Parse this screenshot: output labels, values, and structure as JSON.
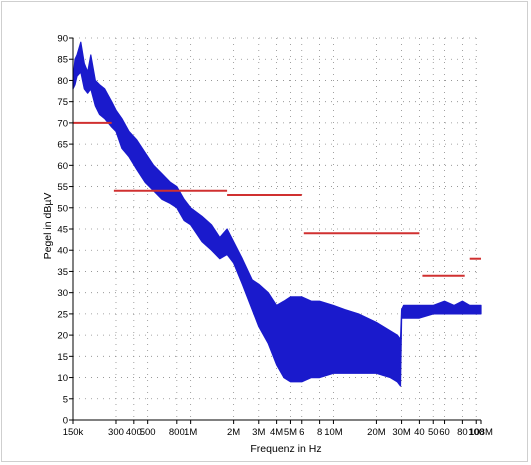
{
  "chart_data": {
    "type": "line",
    "title": "",
    "xlabel": "Frequenz in Hz",
    "ylabel": "Pegel in dBµV",
    "x_scale": "log",
    "xlim": [
      150000,
      108000000
    ],
    "ylim": [
      0,
      90
    ],
    "y_ticks": [
      0,
      5,
      10,
      15,
      20,
      25,
      30,
      35,
      40,
      45,
      50,
      55,
      60,
      65,
      70,
      75,
      80,
      85,
      90
    ],
    "x_tick_labels": [
      {
        "x": 150000,
        "label": "150k"
      },
      {
        "x": 300000,
        "label": "300"
      },
      {
        "x": 400000,
        "label": "400"
      },
      {
        "x": 500000,
        "label": "500"
      },
      {
        "x": 800000,
        "label": "800"
      },
      {
        "x": 1000000,
        "label": "1M"
      },
      {
        "x": 2000000,
        "label": "2M"
      },
      {
        "x": 3000000,
        "label": "3M"
      },
      {
        "x": 4000000,
        "label": "4M"
      },
      {
        "x": 5000000,
        "label": "5M"
      },
      {
        "x": 6000000,
        "label": "6"
      },
      {
        "x": 8000000,
        "label": "8"
      },
      {
        "x": 10000000,
        "label": "10M"
      },
      {
        "x": 20000000,
        "label": "20M"
      },
      {
        "x": 30000000,
        "label": "30M"
      },
      {
        "x": 40000000,
        "label": "40"
      },
      {
        "x": 50000000,
        "label": "50"
      },
      {
        "x": 60000000,
        "label": "60"
      },
      {
        "x": 80000000,
        "label": "80"
      },
      {
        "x": 100000000,
        "label": "100"
      },
      {
        "x": 108000000,
        "label": "108M"
      }
    ],
    "grid": true,
    "grid_style": "dotted",
    "series": [
      {
        "color": "#1a1acc",
        "style": "band",
        "x": [
          150000,
          155000,
          160000,
          170000,
          180000,
          190000,
          200000,
          215000,
          230000,
          250000,
          280000,
          300000,
          330000,
          370000,
          420000,
          480000,
          550000,
          630000,
          720000,
          800000,
          900000,
          1000000,
          1200000,
          1400000,
          1600000,
          1800000,
          2000000,
          2300000,
          2700000,
          3000000,
          3500000,
          4000000,
          4500000,
          5000000,
          5500000,
          6000000,
          7000000,
          8000000,
          10000000,
          12000000,
          15000000,
          20000000,
          25000000,
          28000000,
          29500000,
          30000000,
          31000000,
          35000000,
          40000000,
          50000000,
          60000000,
          70000000,
          80000000,
          90000000,
          100000000,
          108000000
        ],
        "high": [
          80,
          85,
          86,
          89,
          84,
          82,
          86,
          80,
          79,
          78,
          75,
          73,
          71,
          68,
          66,
          63,
          60,
          58,
          56,
          55,
          52,
          50,
          48,
          46,
          43,
          45,
          42,
          38,
          33,
          32,
          30,
          27,
          28,
          29,
          29,
          29,
          28,
          28,
          27,
          26,
          25,
          23,
          21,
          20,
          19,
          26,
          27,
          27,
          27,
          27,
          28,
          27,
          28,
          27,
          27,
          27
        ],
        "low": [
          78,
          79,
          81,
          82,
          78,
          77,
          78,
          74,
          72,
          71,
          69,
          68,
          64,
          62,
          59,
          56,
          54,
          52,
          51,
          50,
          47,
          46,
          42,
          40,
          38,
          39,
          37,
          32,
          26,
          22,
          18,
          13,
          10,
          9,
          9,
          9,
          10,
          10,
          11,
          11,
          11,
          11,
          10,
          9,
          8,
          24,
          24,
          24,
          24,
          25,
          25,
          25,
          25,
          25,
          25,
          25
        ]
      }
    ],
    "limit_lines": [
      {
        "color": "#d03030",
        "x": [
          150000,
          280000
        ],
        "y": 70
      },
      {
        "color": "#d03030",
        "x": [
          290000,
          1800000
        ],
        "y": 54
      },
      {
        "color": "#d03030",
        "x": [
          1800000,
          6000000
        ],
        "y": 53
      },
      {
        "color": "#d03030",
        "x": [
          6200000,
          40000000
        ],
        "y": 44
      },
      {
        "color": "#d03030",
        "x": [
          42000000,
          83000000
        ],
        "y": 34
      },
      {
        "color": "#d03030",
        "x": [
          90000000,
          108000000
        ],
        "y": 38
      }
    ]
  }
}
